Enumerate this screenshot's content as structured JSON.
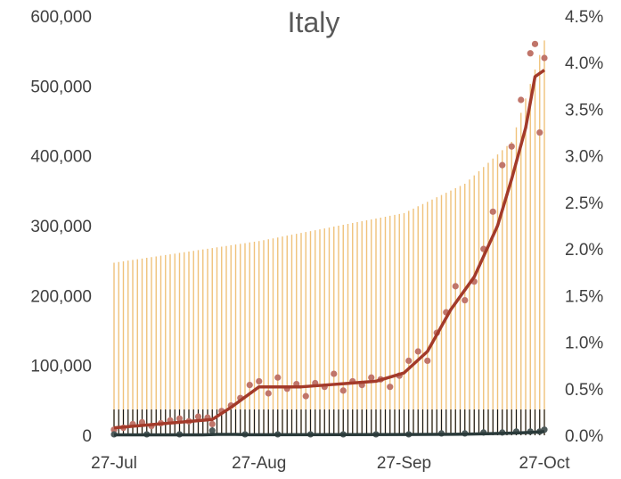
{
  "chart_data": {
    "type": "line",
    "title": "Italy",
    "x_axis": {
      "tick_labels": [
        "27-Jul",
        "27-Aug",
        "27-Sep",
        "27-Oct"
      ],
      "range": [
        "2020-07-27",
        "2020-10-27"
      ]
    },
    "y_left": {
      "tick_labels": [
        "0",
        "100,000",
        "200,000",
        "300,000",
        "400,000",
        "500,000",
        "600,000"
      ],
      "range": [
        0,
        600000
      ]
    },
    "y_right": {
      "tick_labels": [
        "0.0%",
        "0.5%",
        "1.0%",
        "1.5%",
        "2.0%",
        "2.5%",
        "3.0%",
        "3.5%",
        "4.0%",
        "4.5%"
      ],
      "range": [
        0,
        0.045
      ]
    },
    "grid": false,
    "legend": "none",
    "colors": {
      "tall_bars": "#f0c27b",
      "short_bars": "#1a1a1a",
      "cases_points": "#c0756a",
      "cases_line": "#a33a2a",
      "deaths_points": "#4d5a5a",
      "deaths_line": "#2a3a3a"
    },
    "series": [
      {
        "kind": "daily_tall_bars",
        "axis": "left",
        "anchors": [
          {
            "x": "2020-07-27",
            "y": 247000
          },
          {
            "x": "2020-08-27",
            "y": 278000
          },
          {
            "x": "2020-09-27",
            "y": 318000
          },
          {
            "x": "2020-10-10",
            "y": 360000
          },
          {
            "x": "2020-10-20",
            "y": 420000
          },
          {
            "x": "2020-10-27",
            "y": 565000
          }
        ]
      },
      {
        "kind": "daily_short_bars",
        "axis": "left",
        "anchors": [
          {
            "x": "2020-07-27",
            "y": 37000
          },
          {
            "x": "2020-10-27",
            "y": 37000
          }
        ]
      },
      {
        "kind": "cases_points",
        "axis": "right",
        "values": [
          {
            "x": "2020-07-27",
            "y": 0.0006
          },
          {
            "x": "2020-07-29",
            "y": 0.0008
          },
          {
            "x": "2020-07-31",
            "y": 0.0012
          },
          {
            "x": "2020-08-02",
            "y": 0.0014
          },
          {
            "x": "2020-08-04",
            "y": 0.001
          },
          {
            "x": "2020-08-06",
            "y": 0.0013
          },
          {
            "x": "2020-08-08",
            "y": 0.0016
          },
          {
            "x": "2020-08-10",
            "y": 0.0018
          },
          {
            "x": "2020-08-12",
            "y": 0.0015
          },
          {
            "x": "2020-08-14",
            "y": 0.002
          },
          {
            "x": "2020-08-16",
            "y": 0.0019
          },
          {
            "x": "2020-08-17",
            "y": 0.0012
          },
          {
            "x": "2020-08-19",
            "y": 0.0026
          },
          {
            "x": "2020-08-21",
            "y": 0.0032
          },
          {
            "x": "2020-08-23",
            "y": 0.004
          },
          {
            "x": "2020-08-25",
            "y": 0.0054
          },
          {
            "x": "2020-08-27",
            "y": 0.0058
          },
          {
            "x": "2020-08-29",
            "y": 0.0045
          },
          {
            "x": "2020-08-31",
            "y": 0.0062
          },
          {
            "x": "2020-09-02",
            "y": 0.005
          },
          {
            "x": "2020-09-04",
            "y": 0.0055
          },
          {
            "x": "2020-09-06",
            "y": 0.0042
          },
          {
            "x": "2020-09-08",
            "y": 0.0056
          },
          {
            "x": "2020-09-10",
            "y": 0.0052
          },
          {
            "x": "2020-09-12",
            "y": 0.0066
          },
          {
            "x": "2020-09-14",
            "y": 0.0048
          },
          {
            "x": "2020-09-16",
            "y": 0.0058
          },
          {
            "x": "2020-09-18",
            "y": 0.0054
          },
          {
            "x": "2020-09-20",
            "y": 0.0062
          },
          {
            "x": "2020-09-22",
            "y": 0.006
          },
          {
            "x": "2020-09-24",
            "y": 0.0052
          },
          {
            "x": "2020-09-26",
            "y": 0.0064
          },
          {
            "x": "2020-09-28",
            "y": 0.008
          },
          {
            "x": "2020-09-30",
            "y": 0.009
          },
          {
            "x": "2020-10-02",
            "y": 0.008
          },
          {
            "x": "2020-10-04",
            "y": 0.011
          },
          {
            "x": "2020-10-06",
            "y": 0.0132
          },
          {
            "x": "2020-10-08",
            "y": 0.016
          },
          {
            "x": "2020-10-10",
            "y": 0.0145
          },
          {
            "x": "2020-10-12",
            "y": 0.0165
          },
          {
            "x": "2020-10-14",
            "y": 0.02
          },
          {
            "x": "2020-10-16",
            "y": 0.024
          },
          {
            "x": "2020-10-18",
            "y": 0.029
          },
          {
            "x": "2020-10-20",
            "y": 0.031
          },
          {
            "x": "2020-10-22",
            "y": 0.036
          },
          {
            "x": "2020-10-24",
            "y": 0.041
          },
          {
            "x": "2020-10-25",
            "y": 0.042
          },
          {
            "x": "2020-10-26",
            "y": 0.0325
          },
          {
            "x": "2020-10-27",
            "y": 0.0405
          }
        ]
      },
      {
        "kind": "cases_moving_average",
        "axis": "right",
        "values": [
          {
            "x": "2020-07-27",
            "y": 0.0008
          },
          {
            "x": "2020-08-03",
            "y": 0.0011
          },
          {
            "x": "2020-08-10",
            "y": 0.0014
          },
          {
            "x": "2020-08-17",
            "y": 0.0017
          },
          {
            "x": "2020-08-21",
            "y": 0.003
          },
          {
            "x": "2020-08-27",
            "y": 0.0052
          },
          {
            "x": "2020-09-05",
            "y": 0.0052
          },
          {
            "x": "2020-09-13",
            "y": 0.0055
          },
          {
            "x": "2020-09-21",
            "y": 0.0058
          },
          {
            "x": "2020-09-27",
            "y": 0.0067
          },
          {
            "x": "2020-10-02",
            "y": 0.009
          },
          {
            "x": "2020-10-07",
            "y": 0.0135
          },
          {
            "x": "2020-10-12",
            "y": 0.017
          },
          {
            "x": "2020-10-17",
            "y": 0.0225
          },
          {
            "x": "2020-10-20",
            "y": 0.0275
          },
          {
            "x": "2020-10-23",
            "y": 0.033
          },
          {
            "x": "2020-10-25",
            "y": 0.0385
          },
          {
            "x": "2020-10-27",
            "y": 0.0392
          }
        ]
      },
      {
        "kind": "deaths_points",
        "axis": "right",
        "values": [
          {
            "x": "2020-07-27",
            "y": 0.0001
          },
          {
            "x": "2020-08-03",
            "y": 0.0001
          },
          {
            "x": "2020-08-10",
            "y": 0.0001
          },
          {
            "x": "2020-08-17",
            "y": 0.0005
          },
          {
            "x": "2020-08-24",
            "y": 0.0001
          },
          {
            "x": "2020-08-31",
            "y": 0.0001
          },
          {
            "x": "2020-09-07",
            "y": 0.0001
          },
          {
            "x": "2020-09-14",
            "y": 0.0001
          },
          {
            "x": "2020-09-21",
            "y": 0.0001
          },
          {
            "x": "2020-09-28",
            "y": 0.0001
          },
          {
            "x": "2020-10-05",
            "y": 0.0002
          },
          {
            "x": "2020-10-10",
            "y": 0.0002
          },
          {
            "x": "2020-10-14",
            "y": 0.0003
          },
          {
            "x": "2020-10-18",
            "y": 0.0003
          },
          {
            "x": "2020-10-21",
            "y": 0.0004
          },
          {
            "x": "2020-10-24",
            "y": 0.0004
          },
          {
            "x": "2020-10-26",
            "y": 0.0004
          },
          {
            "x": "2020-10-27",
            "y": 0.0006
          }
        ]
      },
      {
        "kind": "deaths_moving_average",
        "axis": "right",
        "values": [
          {
            "x": "2020-07-27",
            "y": 5e-05
          },
          {
            "x": "2020-08-15",
            "y": 5e-05
          },
          {
            "x": "2020-08-18",
            "y": 0.0001
          },
          {
            "x": "2020-08-22",
            "y": 0.0001
          },
          {
            "x": "2020-08-25",
            "y": 6e-05
          },
          {
            "x": "2020-09-27",
            "y": 8e-05
          },
          {
            "x": "2020-10-10",
            "y": 0.00012
          },
          {
            "x": "2020-10-18",
            "y": 0.0002
          },
          {
            "x": "2020-10-24",
            "y": 0.0003
          },
          {
            "x": "2020-10-27",
            "y": 0.0004
          }
        ]
      }
    ]
  }
}
